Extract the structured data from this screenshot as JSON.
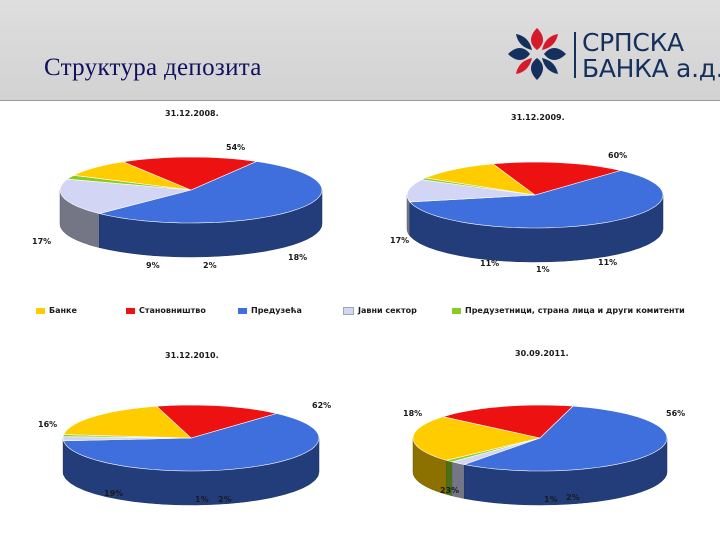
{
  "header": {
    "title": "Структура депозита"
  },
  "logo": {
    "line1": "СРПСКА",
    "line2": "БАНКА а.д."
  },
  "colors": {
    "bank": "#ffcc00",
    "households": "#ee1111",
    "enterprises": "#3f6fdd",
    "public": "#d2d6f4",
    "entrepreneurs": "#88cc22"
  },
  "legend": [
    {
      "name": "Банке",
      "color_key": "bank"
    },
    {
      "name": "Становништво",
      "color_key": "households"
    },
    {
      "name": "Предузећа",
      "color_key": "enterprises"
    },
    {
      "name": "Јавни сектор",
      "color_key": "public"
    },
    {
      "name": "Предузетници, страна лица и други комитенти",
      "color_key": "entrepreneurs"
    }
  ],
  "chart_data": [
    {
      "type": "pie",
      "title": "31.12.2008.",
      "labels": [
        "Банке",
        "Становништво",
        "Предузећа",
        "Јавни сектор",
        "Предузетници, страна лица и други комитенти"
      ],
      "values": [
        9,
        17,
        54,
        18,
        2
      ]
    },
    {
      "type": "pie",
      "title": "31.12.2009.",
      "labels": [
        "Банке",
        "Становништво",
        "Предузећа",
        "Јавни сектор",
        "Предузетници, страна лица и други комитенти"
      ],
      "values": [
        11,
        17,
        60,
        11,
        1
      ]
    },
    {
      "type": "pie",
      "title": "31.12.2010.",
      "labels": [
        "Банке",
        "Становништво",
        "Предузећа",
        "Јавни сектор",
        "Предузетници, страна лица и други комитенти"
      ],
      "values": [
        19,
        16,
        62,
        2,
        1
      ]
    },
    {
      "type": "pie",
      "title": "30.09.2011.",
      "labels": [
        "Банке",
        "Становништво",
        "Предузећа",
        "Јавни сектор",
        "Предузетници, страна лица и други комитенти"
      ],
      "values": [
        23,
        18,
        56,
        2,
        1
      ]
    }
  ]
}
